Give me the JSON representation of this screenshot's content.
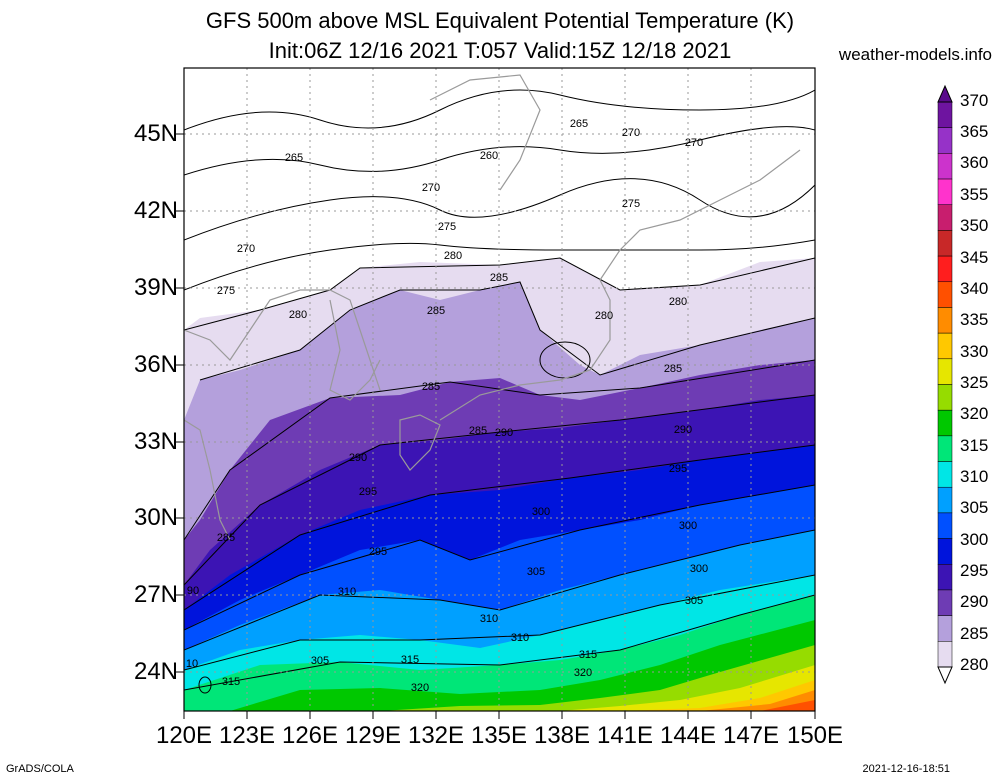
{
  "title_line1": "GFS 500m above MSL Equivalent Potential Temperature (K)",
  "title_line2": "Init:06Z 12/16 2021 T:057 Valid:15Z 12/18 2021",
  "site": "weather-models.info",
  "lat_labels": [
    "45N",
    "42N",
    "39N",
    "36N",
    "33N",
    "30N",
    "27N",
    "24N"
  ],
  "lon_labels": [
    "120E",
    "123E",
    "126E",
    "129E",
    "132E",
    "135E",
    "138E",
    "141E",
    "144E",
    "147E",
    "150E"
  ],
  "colorbar": {
    "levels": [
      "370",
      "365",
      "360",
      "355",
      "350",
      "345",
      "340",
      "335",
      "330",
      "325",
      "320",
      "315",
      "310",
      "305",
      "300",
      "295",
      "290",
      "285",
      "280"
    ],
    "colors": [
      "#6e14a0",
      "#9632c8",
      "#cc33cc",
      "#ff33cc",
      "#c81e6e",
      "#c82828",
      "#ff1e1e",
      "#ff5000",
      "#ff8c00",
      "#ffc800",
      "#e6e600",
      "#96dc00",
      "#00c800",
      "#00e678",
      "#00e6e6",
      "#00a0ff",
      "#0050ff",
      "#0014dc",
      "#3c14b4",
      "#6e3cb4",
      "#b4a0dc",
      "#e6dcf0"
    ]
  },
  "contour_labels": [
    "265",
    "260",
    "265",
    "270",
    "270",
    "270",
    "275",
    "275",
    "270",
    "275",
    "280",
    "280",
    "285",
    "280",
    "285",
    "280",
    "285",
    "285",
    "285",
    "290",
    "290",
    "290",
    "295",
    "295",
    "285",
    "300",
    "300",
    "295",
    "305",
    "300",
    "310",
    "305",
    "310",
    "310",
    "305",
    "315",
    "315",
    "320",
    "320",
    "315",
    "90",
    "10"
  ],
  "footer_left": "GrADS/COLA",
  "footer_right": "2021-12-16-18:51"
}
